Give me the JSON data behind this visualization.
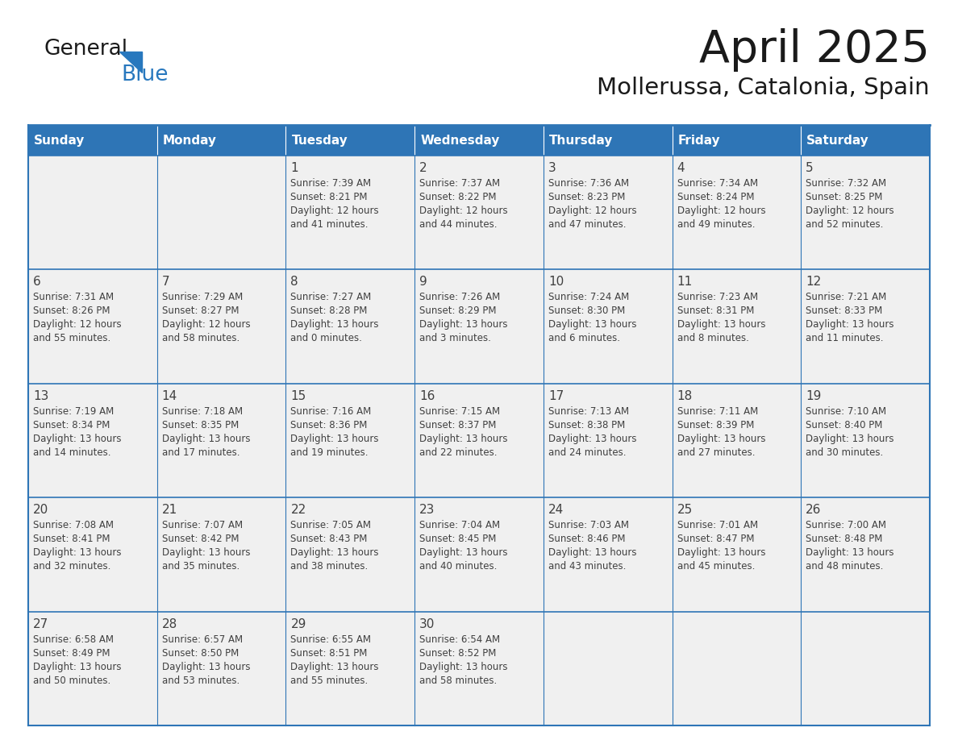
{
  "title": "April 2025",
  "subtitle": "Mollerussa, Catalonia, Spain",
  "days_of_week": [
    "Sunday",
    "Monday",
    "Tuesday",
    "Wednesday",
    "Thursday",
    "Friday",
    "Saturday"
  ],
  "header_bg": "#2E75B6",
  "header_text_color": "#FFFFFF",
  "cell_bg": "#F0F0F0",
  "border_color": "#2E75B6",
  "text_color": "#404040",
  "title_color": "#1a1a1a",
  "logo_general_color": "#1a1a1a",
  "logo_blue_color": "#2878BE",
  "calendar_data": [
    [
      {
        "day": null,
        "sunrise": null,
        "sunset": null,
        "daylight": null
      },
      {
        "day": null,
        "sunrise": null,
        "sunset": null,
        "daylight": null
      },
      {
        "day": 1,
        "sunrise": "7:39 AM",
        "sunset": "8:21 PM",
        "daylight": "12 hours\nand 41 minutes."
      },
      {
        "day": 2,
        "sunrise": "7:37 AM",
        "sunset": "8:22 PM",
        "daylight": "12 hours\nand 44 minutes."
      },
      {
        "day": 3,
        "sunrise": "7:36 AM",
        "sunset": "8:23 PM",
        "daylight": "12 hours\nand 47 minutes."
      },
      {
        "day": 4,
        "sunrise": "7:34 AM",
        "sunset": "8:24 PM",
        "daylight": "12 hours\nand 49 minutes."
      },
      {
        "day": 5,
        "sunrise": "7:32 AM",
        "sunset": "8:25 PM",
        "daylight": "12 hours\nand 52 minutes."
      }
    ],
    [
      {
        "day": 6,
        "sunrise": "7:31 AM",
        "sunset": "8:26 PM",
        "daylight": "12 hours\nand 55 minutes."
      },
      {
        "day": 7,
        "sunrise": "7:29 AM",
        "sunset": "8:27 PM",
        "daylight": "12 hours\nand 58 minutes."
      },
      {
        "day": 8,
        "sunrise": "7:27 AM",
        "sunset": "8:28 PM",
        "daylight": "13 hours\nand 0 minutes."
      },
      {
        "day": 9,
        "sunrise": "7:26 AM",
        "sunset": "8:29 PM",
        "daylight": "13 hours\nand 3 minutes."
      },
      {
        "day": 10,
        "sunrise": "7:24 AM",
        "sunset": "8:30 PM",
        "daylight": "13 hours\nand 6 minutes."
      },
      {
        "day": 11,
        "sunrise": "7:23 AM",
        "sunset": "8:31 PM",
        "daylight": "13 hours\nand 8 minutes."
      },
      {
        "day": 12,
        "sunrise": "7:21 AM",
        "sunset": "8:33 PM",
        "daylight": "13 hours\nand 11 minutes."
      }
    ],
    [
      {
        "day": 13,
        "sunrise": "7:19 AM",
        "sunset": "8:34 PM",
        "daylight": "13 hours\nand 14 minutes."
      },
      {
        "day": 14,
        "sunrise": "7:18 AM",
        "sunset": "8:35 PM",
        "daylight": "13 hours\nand 17 minutes."
      },
      {
        "day": 15,
        "sunrise": "7:16 AM",
        "sunset": "8:36 PM",
        "daylight": "13 hours\nand 19 minutes."
      },
      {
        "day": 16,
        "sunrise": "7:15 AM",
        "sunset": "8:37 PM",
        "daylight": "13 hours\nand 22 minutes."
      },
      {
        "day": 17,
        "sunrise": "7:13 AM",
        "sunset": "8:38 PM",
        "daylight": "13 hours\nand 24 minutes."
      },
      {
        "day": 18,
        "sunrise": "7:11 AM",
        "sunset": "8:39 PM",
        "daylight": "13 hours\nand 27 minutes."
      },
      {
        "day": 19,
        "sunrise": "7:10 AM",
        "sunset": "8:40 PM",
        "daylight": "13 hours\nand 30 minutes."
      }
    ],
    [
      {
        "day": 20,
        "sunrise": "7:08 AM",
        "sunset": "8:41 PM",
        "daylight": "13 hours\nand 32 minutes."
      },
      {
        "day": 21,
        "sunrise": "7:07 AM",
        "sunset": "8:42 PM",
        "daylight": "13 hours\nand 35 minutes."
      },
      {
        "day": 22,
        "sunrise": "7:05 AM",
        "sunset": "8:43 PM",
        "daylight": "13 hours\nand 38 minutes."
      },
      {
        "day": 23,
        "sunrise": "7:04 AM",
        "sunset": "8:45 PM",
        "daylight": "13 hours\nand 40 minutes."
      },
      {
        "day": 24,
        "sunrise": "7:03 AM",
        "sunset": "8:46 PM",
        "daylight": "13 hours\nand 43 minutes."
      },
      {
        "day": 25,
        "sunrise": "7:01 AM",
        "sunset": "8:47 PM",
        "daylight": "13 hours\nand 45 minutes."
      },
      {
        "day": 26,
        "sunrise": "7:00 AM",
        "sunset": "8:48 PM",
        "daylight": "13 hours\nand 48 minutes."
      }
    ],
    [
      {
        "day": 27,
        "sunrise": "6:58 AM",
        "sunset": "8:49 PM",
        "daylight": "13 hours\nand 50 minutes."
      },
      {
        "day": 28,
        "sunrise": "6:57 AM",
        "sunset": "8:50 PM",
        "daylight": "13 hours\nand 53 minutes."
      },
      {
        "day": 29,
        "sunrise": "6:55 AM",
        "sunset": "8:51 PM",
        "daylight": "13 hours\nand 55 minutes."
      },
      {
        "day": 30,
        "sunrise": "6:54 AM",
        "sunset": "8:52 PM",
        "daylight": "13 hours\nand 58 minutes."
      },
      {
        "day": null,
        "sunrise": null,
        "sunset": null,
        "daylight": null
      },
      {
        "day": null,
        "sunrise": null,
        "sunset": null,
        "daylight": null
      },
      {
        "day": null,
        "sunrise": null,
        "sunset": null,
        "daylight": null
      }
    ]
  ]
}
